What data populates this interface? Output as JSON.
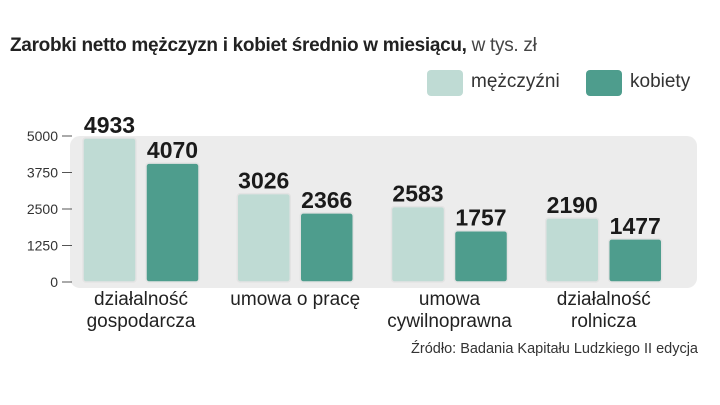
{
  "header": {
    "title": "Zarobki netto mężczyzn i kobiet średnio w miesiącu,",
    "unit": " w tys. zł"
  },
  "source": "Źródło: Badania Kapitału Ludzkiego II edycja",
  "colors": {
    "men": "#bfdbd4",
    "women": "#4e9d8d",
    "plot_bg": "#ececec"
  },
  "chart_data": {
    "type": "bar",
    "title": "Zarobki netto mężczyzn i kobiet średnio w miesiącu, w tys. zł",
    "categories": [
      [
        "działalność",
        "gospodarcza"
      ],
      [
        "umowa o pracę"
      ],
      [
        "umowa",
        "cywilnoprawna"
      ],
      [
        "działalność",
        "rolnicza"
      ]
    ],
    "series": [
      {
        "name": "mężczyźni",
        "values": [
          4933,
          3026,
          2583,
          2190
        ]
      },
      {
        "name": "kobiety",
        "values": [
          4070,
          2366,
          1757,
          1477
        ]
      }
    ],
    "y_ticks": [
      "5000",
      "3750",
      "2500",
      "1250",
      "0"
    ],
    "ylim": [
      0,
      5000
    ],
    "legend_position": "top-right",
    "grid": false
  }
}
